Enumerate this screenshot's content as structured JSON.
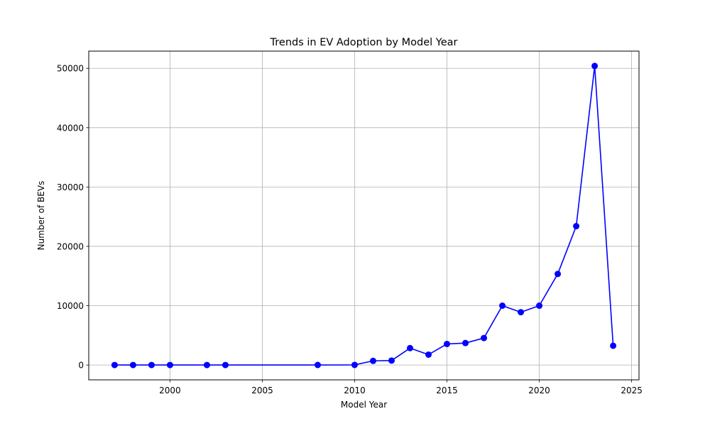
{
  "chart_data": {
    "type": "line",
    "title": "Trends in EV Adoption by Model Year",
    "xlabel": "Model Year",
    "ylabel": "Number of BEVs",
    "xlim": [
      1995.6,
      2025.4
    ],
    "ylim": [
      -2500,
      52900
    ],
    "xticks": [
      2000,
      2005,
      2010,
      2015,
      2020,
      2025
    ],
    "yticks": [
      0,
      10000,
      20000,
      30000,
      40000,
      50000
    ],
    "grid": true,
    "line_color": "#0000ff",
    "marker": "circle",
    "series": [
      {
        "x": [
          1997,
          1998,
          1999,
          2000,
          2002,
          2003,
          2008,
          2010,
          2011,
          2012,
          2013,
          2014,
          2015,
          2016,
          2017,
          2018,
          2019,
          2020,
          2021,
          2022,
          2023,
          2024
        ],
        "y": [
          5,
          5,
          5,
          5,
          5,
          5,
          10,
          20,
          700,
          750,
          2850,
          1750,
          3550,
          3700,
          4550,
          10000,
          8900,
          10000,
          15350,
          23400,
          50400,
          3250
        ]
      }
    ]
  }
}
